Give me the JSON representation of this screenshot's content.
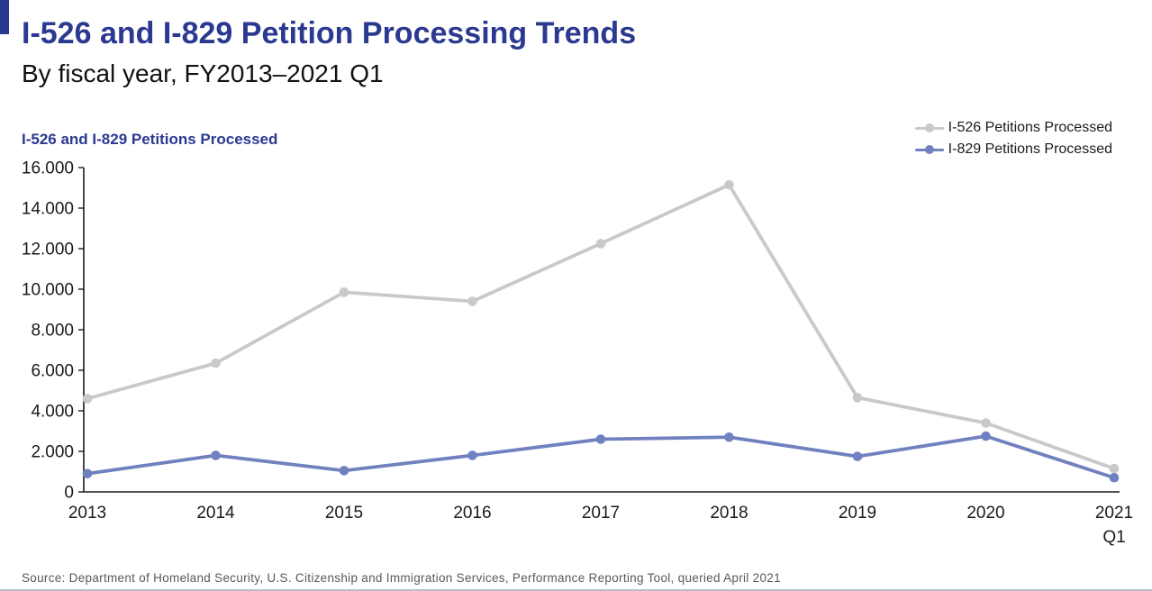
{
  "page": {
    "accent_color": "#2b3990"
  },
  "header": {
    "title": "I-526 and I-829 Petition Processing Trends",
    "subtitle": "By fiscal year, FY2013–2021 Q1"
  },
  "chart_data": {
    "type": "line",
    "title": "I-526 and I-829 Petitions Processed",
    "categories": [
      "2013",
      "2014",
      "2015",
      "2016",
      "2017",
      "2018",
      "2019",
      "2020",
      "2021 Q1"
    ],
    "series": [
      {
        "name": "I-526 Petitions Processed",
        "color": "#c9c9c9",
        "values": [
          4600,
          6350,
          9850,
          9400,
          12250,
          15150,
          4650,
          3400,
          1150
        ]
      },
      {
        "name": "I-829 Petitions Processed",
        "color": "#7081c0",
        "values": [
          900,
          1800,
          1050,
          1800,
          2600,
          2700,
          1750,
          2750,
          700
        ]
      }
    ],
    "ylim": [
      0,
      16000
    ],
    "ytick_step": 2000,
    "ytick_labels": [
      "0",
      "2.000",
      "4.000",
      "6.000",
      "8.000",
      "10.000",
      "12.000",
      "14.000",
      "16.000"
    ],
    "grid": false,
    "legend_position": "top-right",
    "axis_color": "#1a1a1a"
  },
  "footer": {
    "source": "Source: Department of Homeland Security, U.S. Citizenship and Immigration Services, Performance Reporting Tool, queried April 2021"
  }
}
